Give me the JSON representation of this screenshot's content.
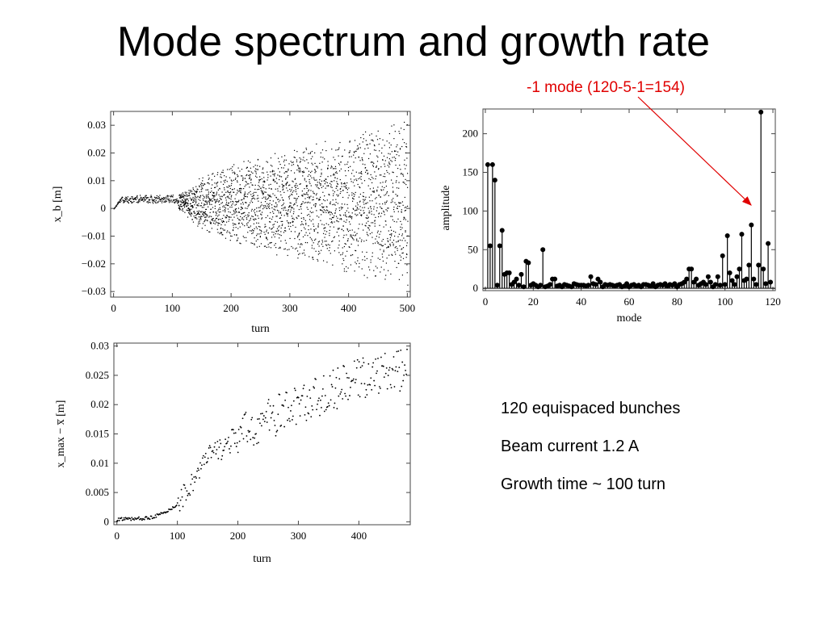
{
  "slide": {
    "title": "Mode spectrum and growth rate",
    "annotation": "-1 mode (120-5-1=154)",
    "notes": [
      "120 equispaced bunches",
      "Beam current 1.2 A",
      "Growth time ~ 100 turn"
    ],
    "annotation_color": "#e00000"
  },
  "chart_data": [
    {
      "id": "position-vs-turn",
      "type": "scatter",
      "xlabel": "turn",
      "ylabel": "x_b [m]",
      "xlim": [
        -5,
        505
      ],
      "ylim": [
        -0.032,
        0.035
      ],
      "x_ticks": [
        0,
        100,
        200,
        300,
        400,
        500
      ],
      "y_ticks": [
        -0.03,
        -0.02,
        -0.01,
        0,
        0.01,
        0.02,
        0.03
      ],
      "y_tick_labels": [
        "−0.03",
        "−0.02",
        "−0.01",
        "0",
        "0.01",
        "0.02",
        "0.03"
      ],
      "envelope": {
        "turn": [
          0,
          10,
          20,
          50,
          100,
          120,
          150,
          200,
          300,
          400,
          500
        ],
        "upper": [
          0.0,
          0.004,
          0.005,
          0.005,
          0.005,
          0.006,
          0.012,
          0.016,
          0.022,
          0.026,
          0.033
        ],
        "lower": [
          0.0,
          0.002,
          0.002,
          0.002,
          0.002,
          -0.002,
          -0.008,
          -0.012,
          -0.018,
          -0.023,
          -0.03
        ]
      }
    },
    {
      "id": "mode-spectrum",
      "type": "bar",
      "xlabel": "mode",
      "ylabel": "amplitude",
      "xlim": [
        -1,
        121
      ],
      "ylim": [
        -3,
        232
      ],
      "x_ticks": [
        0,
        20,
        40,
        60,
        80,
        100,
        120
      ],
      "y_ticks": [
        0,
        50,
        100,
        150,
        200
      ],
      "modes": [
        1,
        2,
        3,
        4,
        5,
        6,
        7,
        8,
        9,
        10,
        11,
        12,
        13,
        14,
        15,
        16,
        17,
        18,
        19,
        20,
        21,
        22,
        23,
        24,
        25,
        26,
        27,
        28,
        29,
        30,
        31,
        32,
        33,
        34,
        35,
        36,
        37,
        38,
        39,
        40,
        41,
        42,
        43,
        44,
        45,
        46,
        47,
        48,
        49,
        50,
        51,
        52,
        53,
        54,
        55,
        56,
        57,
        58,
        59,
        60,
        61,
        62,
        63,
        64,
        65,
        66,
        67,
        68,
        69,
        70,
        71,
        72,
        73,
        74,
        75,
        76,
        77,
        78,
        79,
        80,
        81,
        82,
        83,
        84,
        85,
        86,
        87,
        88,
        89,
        90,
        91,
        92,
        93,
        94,
        95,
        96,
        97,
        98,
        99,
        100,
        101,
        102,
        103,
        104,
        105,
        106,
        107,
        108,
        109,
        110,
        111,
        112,
        113,
        114,
        115,
        116,
        117,
        118,
        119
      ],
      "amplitudes": [
        160,
        55,
        160,
        140,
        4,
        55,
        75,
        18,
        20,
        20,
        5,
        8,
        12,
        4,
        18,
        2,
        35,
        33,
        4,
        6,
        4,
        2,
        4,
        50,
        2,
        3,
        5,
        12,
        12,
        3,
        4,
        2,
        5,
        4,
        3,
        2,
        6,
        5,
        4,
        4,
        4,
        3,
        4,
        15,
        6,
        5,
        12,
        8,
        2,
        5,
        4,
        5,
        4,
        3,
        4,
        5,
        2,
        3,
        6,
        2,
        4,
        5,
        3,
        4,
        2,
        5,
        5,
        4,
        3,
        6,
        2,
        4,
        5,
        4,
        6,
        3,
        5,
        4,
        6,
        2,
        5,
        6,
        8,
        12,
        25,
        25,
        8,
        12,
        4,
        6,
        8,
        5,
        15,
        8,
        2,
        5,
        15,
        4,
        42,
        5,
        68,
        20,
        10,
        5,
        15,
        25,
        70,
        10,
        12,
        30,
        82,
        12,
        5,
        30,
        228,
        25,
        6,
        58,
        8
      ]
    },
    {
      "id": "growth-vs-turn",
      "type": "scatter",
      "xlabel": "turn",
      "ylabel": "x_max − x̅ [m]",
      "xlim": [
        -5,
        485
      ],
      "ylim": [
        -0.0005,
        0.0305
      ],
      "x_ticks": [
        0,
        100,
        200,
        300,
        400
      ],
      "y_ticks": [
        0,
        0.005,
        0.01,
        0.015,
        0.02,
        0.025,
        0.03
      ],
      "y_tick_labels": [
        "0",
        "0.005",
        "0.01",
        "0.015",
        "0.02",
        "0.025",
        "0.03"
      ],
      "trend": {
        "turn": [
          0,
          50,
          80,
          100,
          120,
          150,
          200,
          250,
          300,
          350,
          400,
          450,
          480
        ],
        "value": [
          0.0004,
          0.0006,
          0.0015,
          0.003,
          0.006,
          0.011,
          0.0145,
          0.0175,
          0.02,
          0.022,
          0.0245,
          0.0255,
          0.026
        ]
      }
    }
  ]
}
